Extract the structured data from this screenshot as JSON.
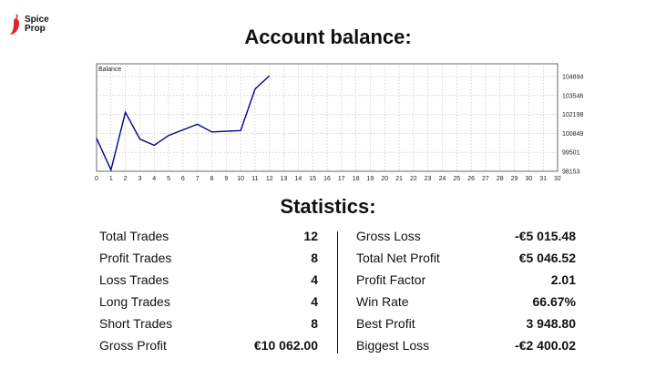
{
  "brand": {
    "line1": "Spice",
    "line2": "Prop",
    "accent": "#e0232a"
  },
  "titles": {
    "balance": "Account balance:",
    "statistics": "Statistics:"
  },
  "chart_data": {
    "type": "line",
    "legend": "Balance",
    "x": [
      0,
      1,
      2,
      3,
      4,
      5,
      6,
      7,
      8,
      9,
      10,
      11,
      12
    ],
    "series": [
      {
        "values": [
          100500,
          98250,
          102350,
          100450,
          100000,
          100700,
          101100,
          101500,
          100950,
          101000,
          101050,
          104000,
          104950
        ]
      }
    ],
    "xticks": [
      "0",
      "1",
      "2",
      "3",
      "4",
      "5",
      "6",
      "7",
      "8",
      "9",
      "10",
      "11",
      "12",
      "13",
      "14",
      "15",
      "16",
      "17",
      "18",
      "19",
      "20",
      "21",
      "22",
      "23",
      "24",
      "25",
      "26",
      "27",
      "28",
      "29",
      "30",
      "31",
      "32"
    ],
    "yticks": [
      "104894",
      "103546",
      "102198",
      "100849",
      "99501",
      "98153"
    ],
    "xlim": [
      0,
      32
    ],
    "ylim": [
      98153,
      105800
    ],
    "grid": true,
    "line_color": "#00008b"
  },
  "stats_left": [
    {
      "label": "Total Trades",
      "value": "12"
    },
    {
      "label": "Profit Trades",
      "value": "8"
    },
    {
      "label": "Loss Trades",
      "value": "4"
    },
    {
      "label": "Long Trades",
      "value": "4"
    },
    {
      "label": "Short Trades",
      "value": "8"
    },
    {
      "label": "Gross Profit",
      "value": "€10 062.00"
    }
  ],
  "stats_right": [
    {
      "label": "Gross Loss",
      "value": "-€5 015.48"
    },
    {
      "label": "Total Net Profit",
      "value": "€5 046.52"
    },
    {
      "label": "Profit Factor",
      "value": "2.01"
    },
    {
      "label": "Win Rate",
      "value": "66.67%"
    },
    {
      "label": "Best Profit",
      "value": "3 948.80"
    },
    {
      "label": "Biggest Loss",
      "value": "-€2 400.02"
    }
  ]
}
